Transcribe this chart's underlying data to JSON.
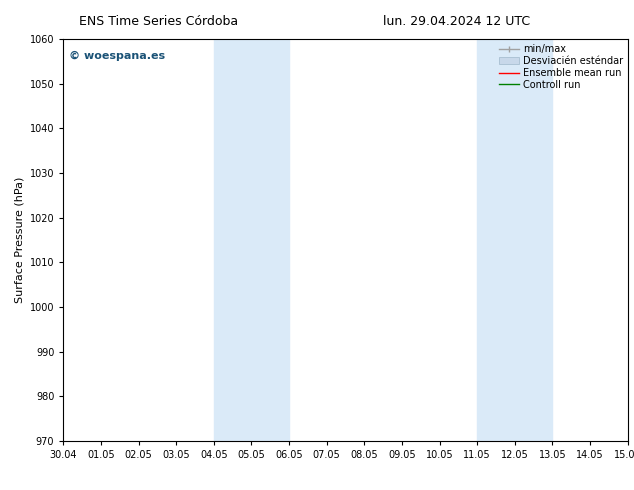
{
  "title_left": "ENS Time Series Córdoba",
  "title_right": "lun. 29.04.2024 12 UTC",
  "ylabel": "Surface Pressure (hPa)",
  "ylim": [
    970,
    1060
  ],
  "yticks": [
    970,
    980,
    990,
    1000,
    1010,
    1020,
    1030,
    1040,
    1050,
    1060
  ],
  "x_labels": [
    "30.04",
    "01.05",
    "02.05",
    "03.05",
    "04.05",
    "05.05",
    "06.05",
    "07.05",
    "08.05",
    "09.05",
    "10.05",
    "11.05",
    "12.05",
    "13.05",
    "14.05",
    "15.05"
  ],
  "x_values": [
    0,
    1,
    2,
    3,
    4,
    5,
    6,
    7,
    8,
    9,
    10,
    11,
    12,
    13,
    14,
    15
  ],
  "shaded_regions": [
    {
      "xmin": 4.0,
      "xmax": 6.0
    },
    {
      "xmin": 11.0,
      "xmax": 13.0
    }
  ],
  "shaded_color": "#daeaf8",
  "watermark_text": "© woespana.es",
  "watermark_color": "#1a5276",
  "bg_color": "white",
  "legend_minmax_color": "#a0a0a0",
  "legend_std_facecolor": "#c8d8ea",
  "legend_std_edgecolor": "#a0b8cc",
  "legend_ens_color": "red",
  "legend_ctrl_color": "green",
  "title_fontsize": 9,
  "tick_fontsize": 7,
  "ylabel_fontsize": 8,
  "legend_fontsize": 7,
  "watermark_fontsize": 8
}
